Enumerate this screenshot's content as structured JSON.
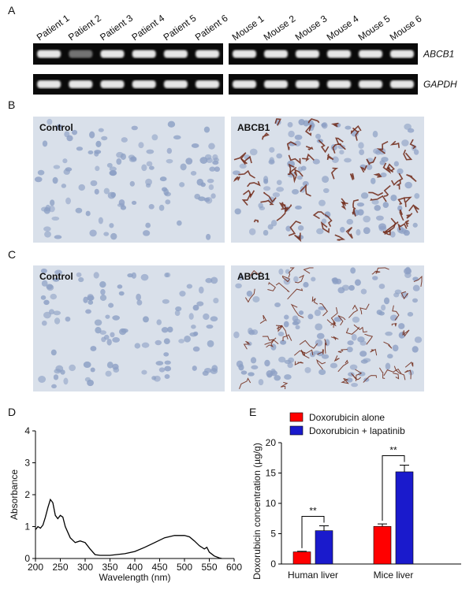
{
  "panel_labels": [
    "A",
    "B",
    "C",
    "D",
    "E"
  ],
  "gel": {
    "lanes": [
      "Patient 1",
      "Patient 2",
      "Patient 3",
      "Patient 4",
      "Patient 5",
      "Patient 6",
      "Mouse 1",
      "Mouse 2",
      "Mouse 3",
      "Mouse 4",
      "Mouse 5",
      "Mouse 6"
    ],
    "genes": [
      "ABCB1",
      "GAPDH"
    ]
  },
  "micrographs": [
    [
      "Control",
      "ABCB1"
    ],
    [
      "Control",
      "ABCB1"
    ]
  ],
  "chart_data": [
    {
      "type": "line",
      "color": "#000000",
      "xlabel": "Wavelength (nm)",
      "ylabel": "Absorbance",
      "x": [
        200,
        205,
        210,
        215,
        220,
        225,
        230,
        235,
        240,
        245,
        250,
        255,
        260,
        270,
        280,
        290,
        300,
        310,
        320,
        330,
        350,
        380,
        400,
        420,
        440,
        460,
        480,
        500,
        510,
        520,
        530,
        540,
        545,
        550,
        560,
        570,
        575
      ],
      "values": [
        0.9,
        1.0,
        0.95,
        1.05,
        1.3,
        1.6,
        1.85,
        1.75,
        1.35,
        1.25,
        1.35,
        1.3,
        1.0,
        0.65,
        0.5,
        0.55,
        0.5,
        0.3,
        0.12,
        0.1,
        0.1,
        0.15,
        0.22,
        0.35,
        0.5,
        0.65,
        0.72,
        0.72,
        0.68,
        0.55,
        0.4,
        0.3,
        0.35,
        0.2,
        0.08,
        0.02,
        0
      ],
      "xlim": [
        200,
        600
      ],
      "xticks": [
        200,
        250,
        300,
        350,
        400,
        450,
        500,
        550,
        600
      ],
      "ylim": [
        0,
        4
      ],
      "yticks": [
        0,
        1,
        2,
        3,
        4
      ]
    },
    {
      "type": "bar",
      "ylabel": "Doxorubicin concentration (µg/g)",
      "categories": [
        "Human liver",
        "Mice liver"
      ],
      "series": [
        {
          "name": "Doxorubicin alone",
          "color": "#ff0000",
          "values": [
            2.0,
            6.2
          ],
          "errors": [
            0.1,
            0.4
          ]
        },
        {
          "name": "Doxorubicin + lapatinib",
          "color": "#1a1acc",
          "values": [
            5.5,
            15.2
          ],
          "errors": [
            0.8,
            1.1
          ]
        }
      ],
      "ylim": [
        0,
        20
      ],
      "yticks": [
        0,
        5,
        10,
        15,
        20
      ],
      "annotations": [
        "**",
        "**"
      ]
    }
  ]
}
